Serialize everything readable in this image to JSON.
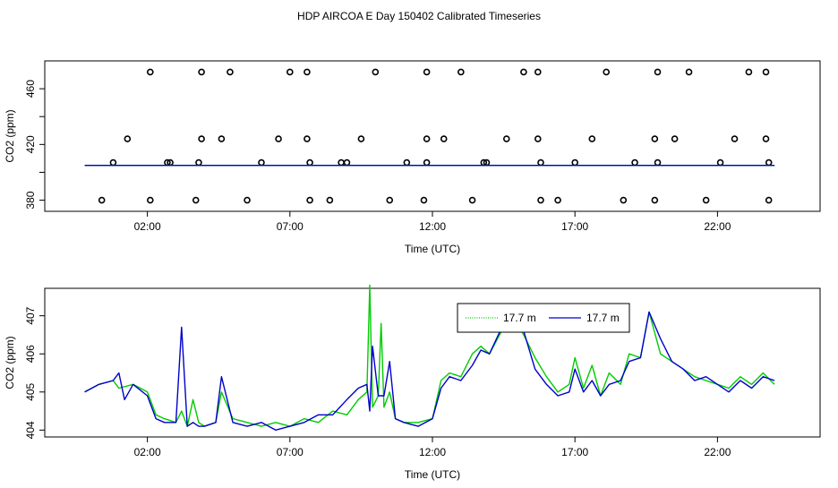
{
  "title": "HDP AIRCOA E  Day 150402  Calibrated Timeseries",
  "colors": {
    "green": "#00cc00",
    "blue": "#0000cc",
    "axis": "#000000"
  },
  "chart_data": [
    {
      "type": "scatter",
      "xlabel": "Time (UTC)",
      "ylabel": "CO2 (ppm)",
      "xlim": [
        -1.6,
        25.6
      ],
      "ylim": [
        372,
        480
      ],
      "x_ticks": [
        2,
        7,
        12,
        17,
        22
      ],
      "x_tick_labels": [
        "02:00",
        "07:00",
        "12:00",
        "17:00",
        "22:00"
      ],
      "y_ticks": [
        380,
        420,
        460
      ],
      "y_tick_labels": [
        "380",
        "420",
        "460"
      ],
      "grid": false,
      "series": [
        {
          "color": "#000000",
          "points": [
            [
              2.1,
              472
            ],
            [
              3.9,
              472
            ],
            [
              4.9,
              472
            ],
            [
              7.0,
              472
            ],
            [
              7.6,
              472
            ],
            [
              10.0,
              472
            ],
            [
              11.8,
              472
            ],
            [
              13.0,
              472
            ],
            [
              15.2,
              472
            ],
            [
              15.7,
              472
            ],
            [
              18.1,
              472
            ],
            [
              19.9,
              472
            ],
            [
              21.0,
              472
            ],
            [
              23.1,
              472
            ],
            [
              23.7,
              472
            ],
            [
              1.3,
              424
            ],
            [
              3.9,
              424
            ],
            [
              4.6,
              424
            ],
            [
              6.6,
              424
            ],
            [
              7.6,
              424
            ],
            [
              9.5,
              424
            ],
            [
              11.8,
              424
            ],
            [
              12.4,
              424
            ],
            [
              14.6,
              424
            ],
            [
              15.7,
              424
            ],
            [
              17.6,
              424
            ],
            [
              19.8,
              424
            ],
            [
              20.5,
              424
            ],
            [
              22.6,
              424
            ],
            [
              23.7,
              424
            ],
            [
              0.8,
              407
            ],
            [
              2.7,
              407
            ],
            [
              2.8,
              407
            ],
            [
              3.8,
              407
            ],
            [
              6.0,
              407
            ],
            [
              7.7,
              407
            ],
            [
              8.8,
              407
            ],
            [
              9.0,
              407
            ],
            [
              11.1,
              407
            ],
            [
              11.8,
              407
            ],
            [
              13.8,
              407
            ],
            [
              13.9,
              407
            ],
            [
              15.8,
              407
            ],
            [
              17.0,
              407
            ],
            [
              19.1,
              407
            ],
            [
              19.9,
              407
            ],
            [
              22.1,
              407
            ],
            [
              23.8,
              407
            ],
            [
              0.4,
              380
            ],
            [
              2.1,
              380
            ],
            [
              3.7,
              380
            ],
            [
              5.5,
              380
            ],
            [
              7.7,
              380
            ],
            [
              8.4,
              380
            ],
            [
              10.5,
              380
            ],
            [
              11.7,
              380
            ],
            [
              13.4,
              380
            ],
            [
              15.8,
              380
            ],
            [
              16.4,
              380
            ],
            [
              18.7,
              380
            ],
            [
              19.8,
              380
            ],
            [
              21.6,
              380
            ],
            [
              23.8,
              380
            ]
          ]
        },
        {
          "name": "17.7 m",
          "color": "#00cc00",
          "x": [
            -0.2,
            24
          ],
          "y": [
            405,
            405
          ]
        },
        {
          "name": "17.7 m",
          "color": "#0000cc",
          "x": [
            -0.2,
            24
          ],
          "y": [
            405,
            405
          ]
        }
      ]
    },
    {
      "type": "line",
      "xlabel": "Time (UTC)",
      "ylabel": "CO2 (ppm)",
      "xlim": [
        -1.6,
        25.6
      ],
      "ylim": [
        403.82,
        407.72
      ],
      "x_ticks": [
        2,
        7,
        12,
        17,
        22
      ],
      "x_tick_labels": [
        "02:00",
        "07:00",
        "12:00",
        "17:00",
        "22:00"
      ],
      "y_ticks": [
        404,
        405,
        406,
        407
      ],
      "y_tick_labels": [
        "404",
        "405",
        "406",
        "407"
      ],
      "grid": false,
      "legend": "top-center",
      "series": [
        {
          "name": "17.7 m",
          "color": "#00cc00",
          "x": [
            -0.2,
            0.3,
            0.8,
            1.0,
            1.5,
            2.0,
            2.3,
            2.6,
            3.0,
            3.2,
            3.4,
            3.6,
            3.8,
            4.0,
            4.4,
            4.6,
            5.0,
            5.5,
            6.0,
            6.5,
            7.0,
            7.5,
            8.0,
            8.5,
            9.0,
            9.4,
            9.7,
            9.8,
            9.9,
            10.1,
            10.2,
            10.3,
            10.5,
            10.7,
            11.0,
            11.5,
            12.0,
            12.3,
            12.6,
            13.0,
            13.4,
            13.7,
            14.0,
            14.5,
            14.8,
            15.2,
            15.6,
            16.0,
            16.4,
            16.8,
            17.0,
            17.3,
            17.6,
            17.9,
            18.2,
            18.6,
            18.9,
            19.3,
            19.6,
            20.0,
            20.4,
            20.8,
            21.2,
            21.6,
            22.0,
            22.4,
            22.8,
            23.2,
            23.6,
            24.0
          ],
          "y": [
            405.0,
            405.2,
            405.3,
            405.1,
            405.2,
            405.0,
            404.4,
            404.3,
            404.2,
            404.5,
            404.1,
            404.8,
            404.2,
            404.1,
            404.2,
            405.0,
            404.3,
            404.2,
            404.1,
            404.2,
            404.1,
            404.3,
            404.2,
            404.5,
            404.4,
            404.8,
            405.0,
            407.8,
            404.6,
            404.9,
            406.8,
            404.6,
            405.0,
            404.3,
            404.2,
            404.2,
            404.3,
            405.3,
            405.5,
            405.4,
            406.0,
            406.2,
            406.0,
            406.7,
            407.0,
            406.5,
            405.9,
            405.4,
            405.0,
            405.2,
            405.9,
            405.1,
            405.7,
            404.9,
            405.5,
            405.2,
            406.0,
            405.9,
            407.1,
            406.0,
            405.8,
            405.6,
            405.4,
            405.3,
            405.2,
            405.1,
            405.4,
            405.2,
            405.5,
            405.2
          ]
        },
        {
          "name": "17.7 m",
          "color": "#0000cc",
          "x": [
            -0.2,
            0.3,
            0.8,
            1.0,
            1.2,
            1.5,
            2.0,
            2.3,
            2.6,
            3.0,
            3.2,
            3.4,
            3.6,
            3.8,
            4.0,
            4.4,
            4.6,
            5.0,
            5.5,
            6.0,
            6.5,
            7.0,
            7.5,
            8.0,
            8.5,
            9.0,
            9.4,
            9.7,
            9.8,
            9.9,
            10.1,
            10.3,
            10.5,
            10.7,
            11.0,
            11.5,
            12.0,
            12.3,
            12.6,
            13.0,
            13.4,
            13.7,
            14.0,
            14.5,
            14.8,
            15.2,
            15.6,
            16.0,
            16.4,
            16.8,
            17.0,
            17.3,
            17.6,
            17.9,
            18.2,
            18.6,
            18.9,
            19.3,
            19.6,
            20.0,
            20.4,
            20.8,
            21.2,
            21.6,
            22.0,
            22.4,
            22.8,
            23.2,
            23.6,
            24.0
          ],
          "y": [
            405.0,
            405.2,
            405.3,
            405.5,
            404.8,
            405.2,
            404.9,
            404.3,
            404.2,
            404.2,
            406.7,
            404.1,
            404.2,
            404.1,
            404.1,
            404.2,
            405.4,
            404.2,
            404.1,
            404.2,
            404.0,
            404.1,
            404.2,
            404.4,
            404.4,
            404.8,
            405.1,
            405.2,
            404.5,
            406.2,
            404.9,
            404.9,
            405.8,
            404.3,
            404.2,
            404.1,
            404.3,
            405.1,
            405.4,
            405.3,
            405.7,
            406.1,
            406.0,
            406.8,
            407.0,
            406.6,
            405.6,
            405.2,
            404.9,
            405.0,
            405.6,
            405.0,
            405.3,
            404.9,
            405.2,
            405.3,
            405.8,
            405.9,
            407.1,
            406.4,
            405.8,
            405.6,
            405.3,
            405.4,
            405.2,
            405.0,
            405.3,
            405.1,
            405.4,
            405.3
          ]
        }
      ]
    }
  ]
}
